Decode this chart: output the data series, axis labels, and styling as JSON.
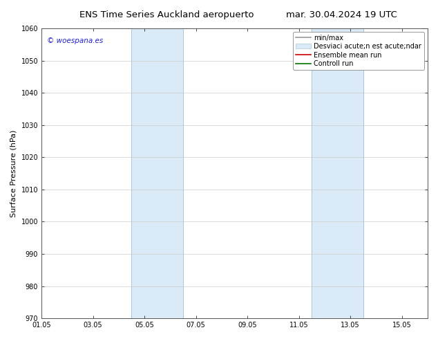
{
  "title_left": "ENS Time Series Auckland aeropuerto",
  "title_right": "mar. 30.04.2024 19 UTC",
  "ylabel": "Surface Pressure (hPa)",
  "ylim": [
    970,
    1060
  ],
  "yticks": [
    970,
    980,
    990,
    1000,
    1010,
    1020,
    1030,
    1040,
    1050,
    1060
  ],
  "xlim_start": 0,
  "xlim_end": 15,
  "xtick_labels": [
    "01.05",
    "03.05",
    "05.05",
    "07.05",
    "09.05",
    "11.05",
    "13.05",
    "15.05"
  ],
  "xtick_positions": [
    0,
    2,
    4,
    6,
    8,
    10,
    12,
    14
  ],
  "shaded_regions": [
    {
      "x_start": 3.5,
      "x_end": 5.5,
      "color": "#daeaf6"
    },
    {
      "x_start": 10.5,
      "x_end": 12.5,
      "color": "#daeaf6"
    }
  ],
  "shade_line_color": "#a8c8e0",
  "watermark_text": "© woespana.es",
  "watermark_color": "#2222cc",
  "bg_color": "#ffffff",
  "grid_color": "#cccccc",
  "title_fontsize": 9.5,
  "tick_fontsize": 7,
  "ylabel_fontsize": 8,
  "legend_fontsize": 7,
  "legend_label1": "min/max",
  "legend_label2": "Desviaci acute;n est acute;ndar",
  "legend_label3": "Ensemble mean run",
  "legend_label4": "Controll run",
  "legend_color1": "#999999",
  "legend_color2": "#daeaf6",
  "legend_color3": "#cc0000",
  "legend_color4": "#007700"
}
